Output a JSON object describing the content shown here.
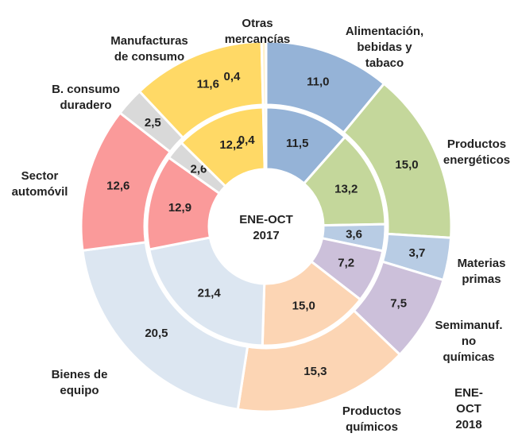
{
  "chart_data": {
    "type": "donut",
    "categories": [
      "Alimentación,\nbebidas y\ntabaco",
      "Productos\nenergéticos",
      "Materias\nprimas",
      "Semimanuf.\nno químicas",
      "Productos\nquímicos",
      "Bienes de\nequipo",
      "Sector\nautomóvil",
      "B. consumo\nduradero",
      "Manufacturas\nde consumo",
      "Otras\nmercancías"
    ],
    "colors": [
      "#95b3d7",
      "#c4d79b",
      "#b8cce4",
      "#ccc0da",
      "#fcd5b4",
      "#dce6f1",
      "#fa9a9a",
      "#d9d9d9",
      "#ffd966",
      "#fff2cc"
    ],
    "series": [
      {
        "name": "ENE-OCT\n2017",
        "values": [
          11.5,
          13.2,
          3.6,
          7.2,
          15.0,
          21.4,
          12.9,
          2.6,
          12.2,
          0.4
        ],
        "value_labels": [
          "11,5",
          "13,2",
          "3,6",
          "7,2",
          "15,0",
          "21,4",
          "12,9",
          "2,6",
          "12,2",
          "0,4"
        ]
      },
      {
        "name": "ENE-OCT\n2018",
        "values": [
          11.0,
          15.0,
          3.7,
          7.5,
          15.3,
          20.5,
          12.6,
          2.5,
          11.6,
          0.4
        ],
        "value_labels": [
          "11,0",
          "15,0",
          "3,7",
          "7,5",
          "15,3",
          "20,5",
          "12,6",
          "2,5",
          "11,6",
          "0,4"
        ]
      }
    ]
  }
}
